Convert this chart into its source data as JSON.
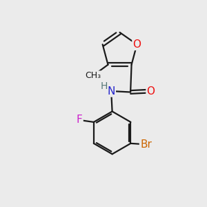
{
  "background_color": "#ebebeb",
  "bond_color": "#1a1a1a",
  "bond_width": 1.6,
  "atom_colors": {
    "O": "#ee1111",
    "N": "#2222cc",
    "F": "#cc22cc",
    "Br": "#cc6600",
    "C": "#1a1a1a",
    "H": "#557777"
  },
  "font_size": 10,
  "fig_size": [
    3.0,
    3.0
  ],
  "dpi": 100
}
